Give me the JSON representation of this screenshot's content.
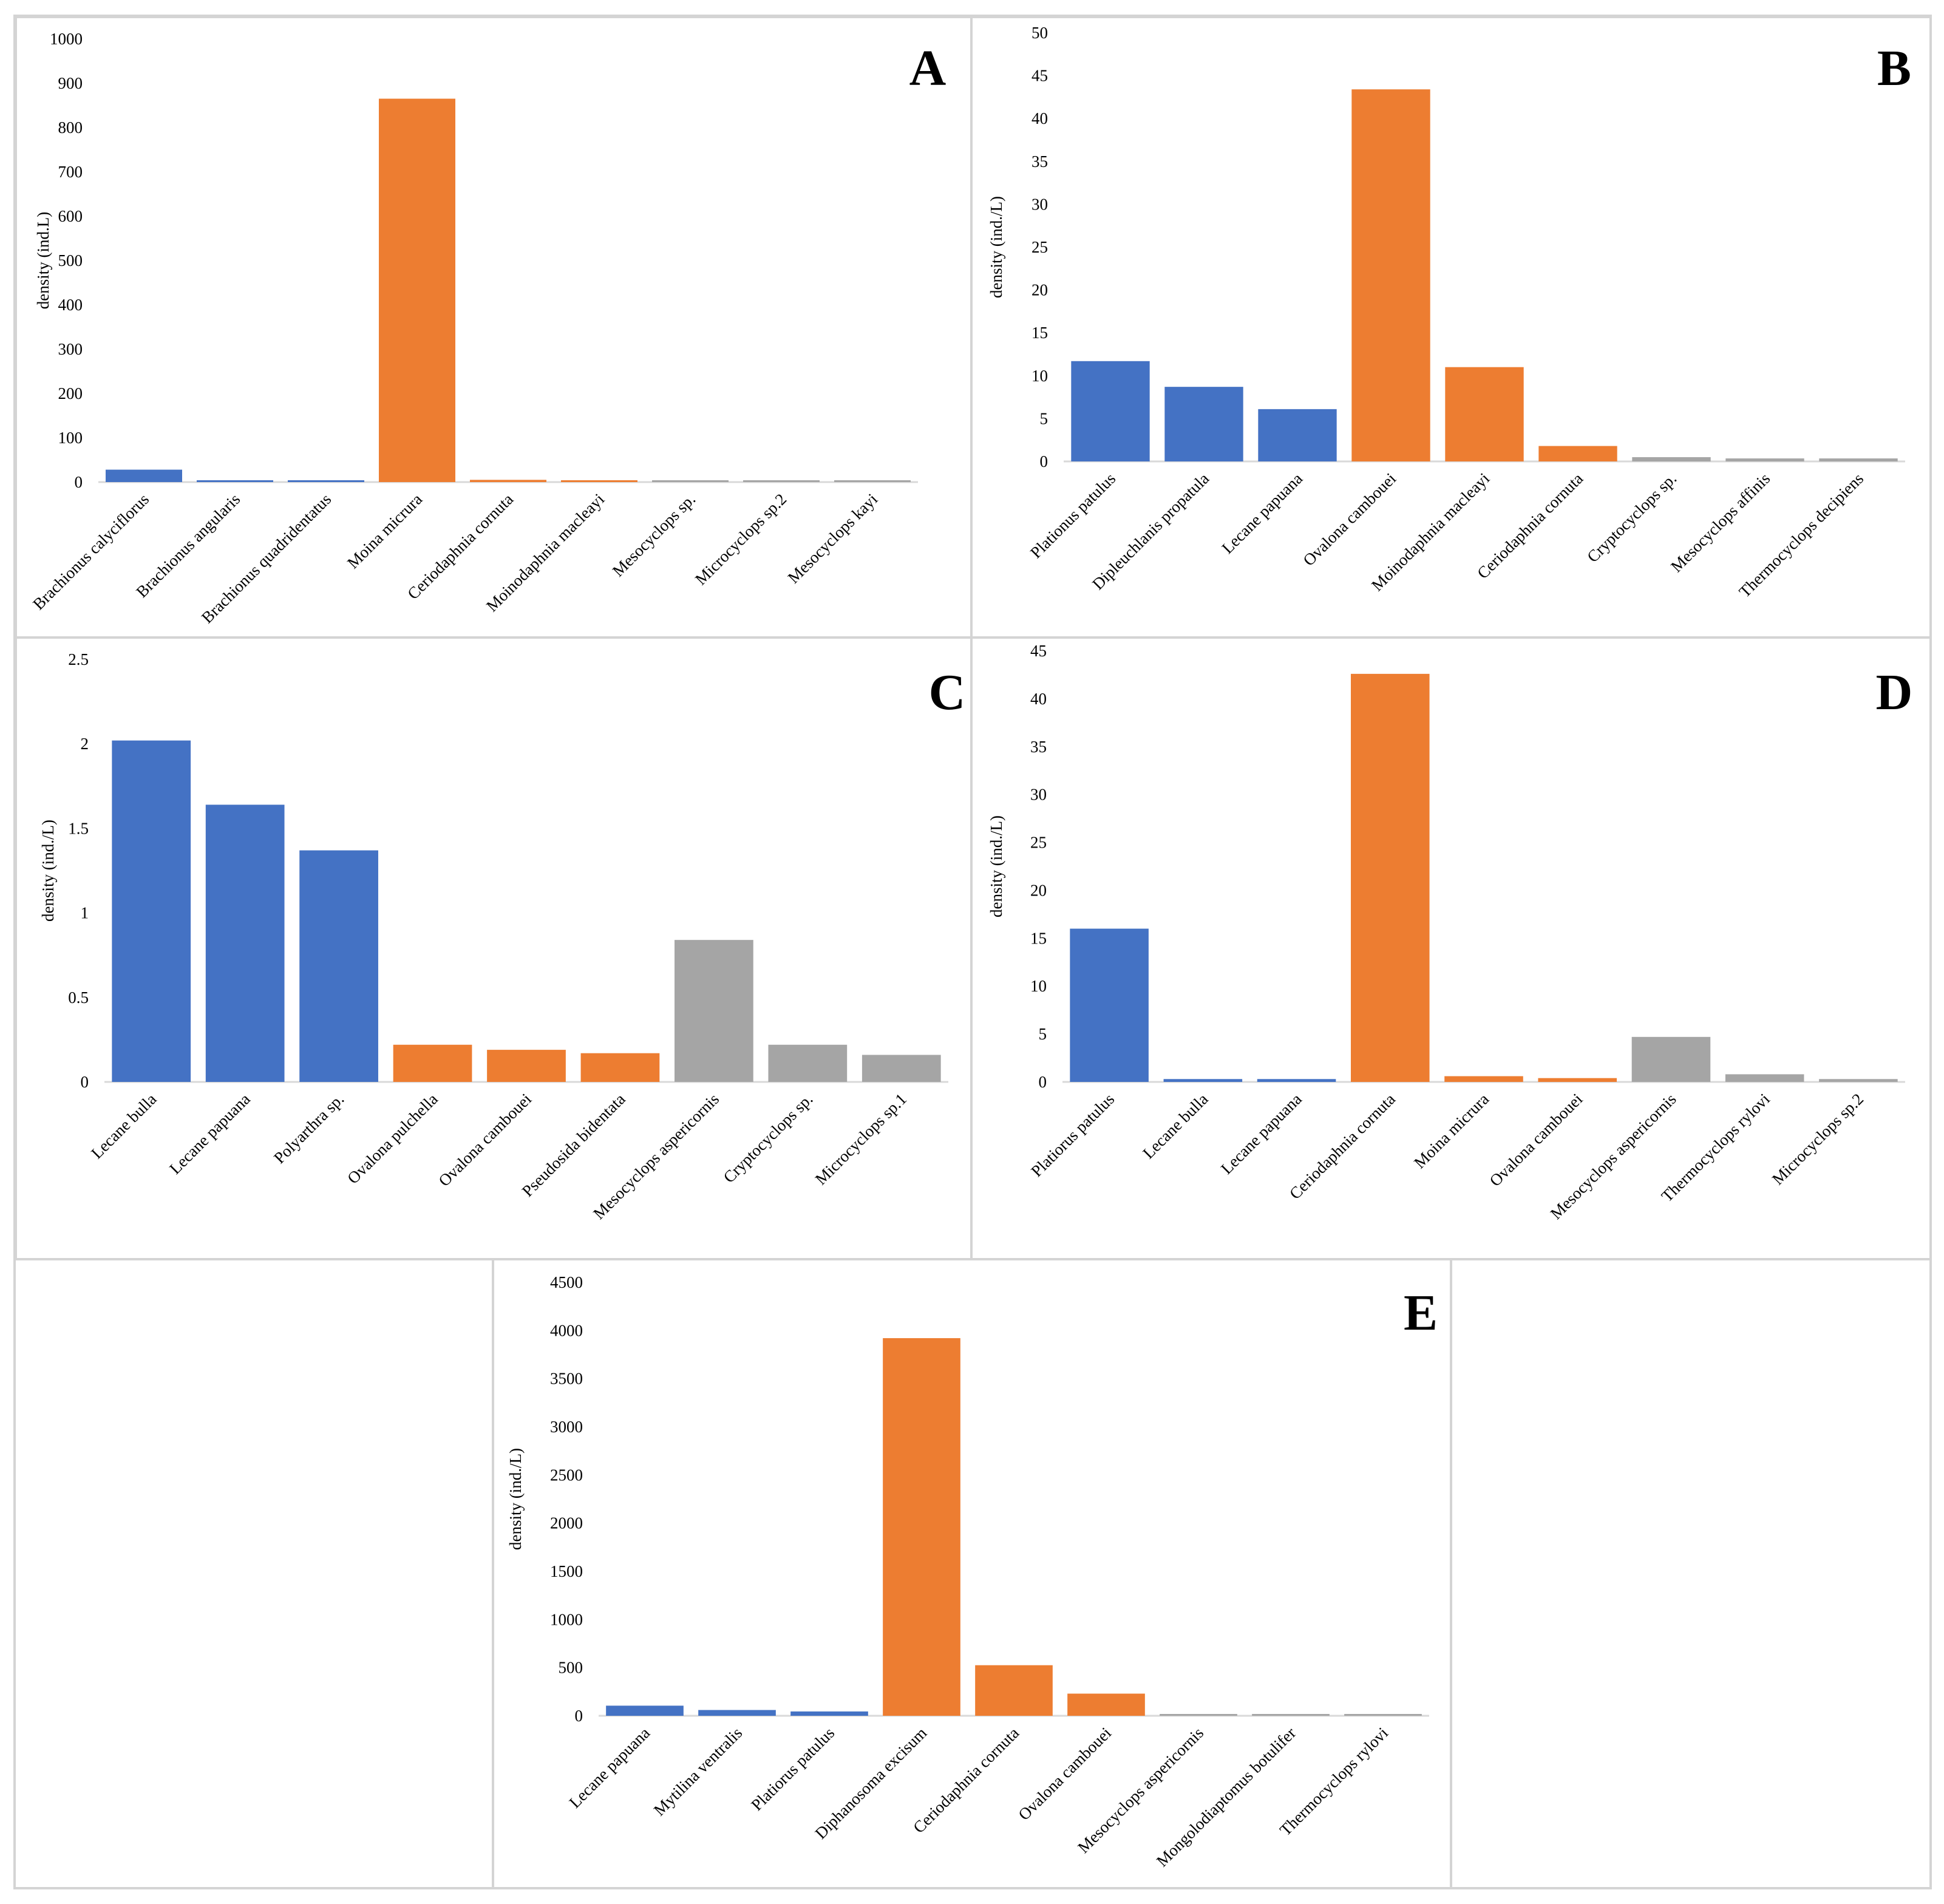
{
  "colors": {
    "rotifera": "#4472c4",
    "cladocera": "#ed7d31",
    "copepoda": "#a5a5a5"
  },
  "chart_data": [
    {
      "type": "bar",
      "title": "A",
      "ylabel": "density (ind.L)",
      "ylim": [
        0,
        1000
      ],
      "yticks": [
        "0",
        "100",
        "200",
        "300",
        "400",
        "500",
        "600",
        "700",
        "800",
        "900",
        "1000"
      ],
      "yticks_values": [
        0,
        100,
        200,
        300,
        400,
        500,
        600,
        700,
        800,
        900,
        1000
      ],
      "categories": [
        "Brachionus calyciflorus",
        "Brachionus angularis",
        "Brachionus quadridentatus",
        "Moina micrura",
        "Ceriodaphnia cornuta",
        "Moinodaphnia macleayi",
        "Mesocyclops sp.",
        "Microcyclops sp.2",
        "Mesocyclops kayi"
      ],
      "values": [
        28,
        0.8,
        0.8,
        865,
        5,
        0.8,
        4,
        0.8,
        0.8
      ],
      "groups": [
        "rotifera",
        "rotifera",
        "rotifera",
        "cladocera",
        "cladocera",
        "cladocera",
        "copepoda",
        "copepoda",
        "copepoda"
      ]
    },
    {
      "type": "bar",
      "title": "B",
      "ylabel": "density (ind./L)",
      "ylim": [
        0,
        50
      ],
      "yticks": [
        "0",
        "5",
        "10",
        "15",
        "20",
        "25",
        "30",
        "35",
        "40",
        "45",
        "50"
      ],
      "yticks_values": [
        0,
        5,
        10,
        15,
        20,
        25,
        30,
        35,
        40,
        45,
        50
      ],
      "categories": [
        "Plationus patulus",
        "Dipleuchlanis propatula",
        "Lecane papuana",
        "Ovalona cambouei",
        "Moinodaphnia macleayi",
        "Ceriodaphnia cornuta",
        "Cryptocyclops sp.",
        "Mesocyclops affinis",
        "Thermocyclops decipiens"
      ],
      "values": [
        11.7,
        8.7,
        6.1,
        43.4,
        11.0,
        1.8,
        0.5,
        0.35,
        0.35
      ],
      "groups": [
        "rotifera",
        "rotifera",
        "rotifera",
        "cladocera",
        "cladocera",
        "cladocera",
        "copepoda",
        "copepoda",
        "copepoda"
      ]
    },
    {
      "type": "bar",
      "title": "C",
      "ylabel": "density (ind./L)",
      "ylim": [
        0,
        2.5
      ],
      "yticks": [
        "0",
        "0.5",
        "1",
        "1.5",
        "2",
        "2.5"
      ],
      "yticks_values": [
        0,
        0.5,
        1,
        1.5,
        2,
        2.5
      ],
      "categories": [
        "Lecane bulla",
        "Lecane papuana",
        "Polyarthra sp.",
        "Ovalona pulchella",
        "Ovalona cambouei",
        "Pseudosida bidentata",
        "Mesocyclops aspericornis",
        "Cryptocyclops sp.",
        "Microcyclops sp.1"
      ],
      "values": [
        2.02,
        1.64,
        1.37,
        0.22,
        0.19,
        0.17,
        0.84,
        0.22,
        0.16
      ],
      "groups": [
        "rotifera",
        "rotifera",
        "rotifera",
        "cladocera",
        "cladocera",
        "cladocera",
        "copepoda",
        "copepoda",
        "copepoda"
      ]
    },
    {
      "type": "bar",
      "title": "D",
      "ylabel": "density (ind./L)",
      "ylim": [
        0,
        45
      ],
      "yticks": [
        "0",
        "5",
        "10",
        "15",
        "20",
        "25",
        "30",
        "35",
        "40",
        "45"
      ],
      "yticks_values": [
        0,
        5,
        10,
        15,
        20,
        25,
        30,
        35,
        40,
        45
      ],
      "categories": [
        "Platiorus patulus",
        "Lecane bulla",
        "Lecane papuana",
        "Ceriodaphnia cornuta",
        "Moina micrura",
        "Ovalona cambouei",
        "Mesocyclops aspericornis",
        "Thermocyclops rylovi",
        "Microcyclops sp.2"
      ],
      "values": [
        16.0,
        0.3,
        0.3,
        42.6,
        0.6,
        0.4,
        4.7,
        0.8,
        0.3
      ],
      "groups": [
        "rotifera",
        "rotifera",
        "rotifera",
        "cladocera",
        "cladocera",
        "cladocera",
        "copepoda",
        "copepoda",
        "copepoda"
      ]
    },
    {
      "type": "bar",
      "title": "E",
      "ylabel": "density (ind./L)",
      "ylim": [
        0,
        4500
      ],
      "yticks": [
        "0",
        "500",
        "1000",
        "1500",
        "2000",
        "2500",
        "3000",
        "3500",
        "4000",
        "4500"
      ],
      "yticks_values": [
        0,
        500,
        1000,
        1500,
        2000,
        2500,
        3000,
        3500,
        4000,
        4500
      ],
      "categories": [
        "Lecane papuana",
        "Mytilina ventralis",
        "Platiorus patulus",
        "Diphanosoma excisum",
        "Ceriodaphnia cornuta",
        "Ovalona cambouei",
        "Mesocyclops aspericornis",
        "Mongolodiaptomus botulifer",
        "Thermocyclops rylovi"
      ],
      "values": [
        105,
        60,
        45,
        3920,
        525,
        230,
        4,
        4,
        4
      ],
      "groups": [
        "rotifera",
        "rotifera",
        "rotifera",
        "cladocera",
        "cladocera",
        "cladocera",
        "copepoda",
        "copepoda",
        "copepoda"
      ]
    }
  ]
}
